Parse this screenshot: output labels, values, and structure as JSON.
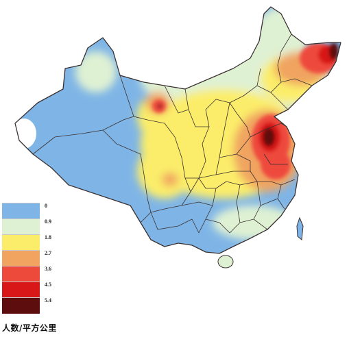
{
  "map": {
    "colors": {
      "c0": "#7fb5e6",
      "c1": "#dff1d3",
      "c2": "#fbed6a",
      "c3": "#f0a460",
      "c4": "#ee4a3c",
      "c5": "#d81818",
      "c6": "#5e0d0f",
      "border": "#3a3030",
      "water": "#ffffff"
    }
  },
  "legend": {
    "items": [
      {
        "label": "0",
        "color": "#7fb5e6"
      },
      {
        "label": "0.9",
        "color": "#dff1d3"
      },
      {
        "label": "1.8",
        "color": "#fbed6a"
      },
      {
        "label": "2.7",
        "color": "#f0a460"
      },
      {
        "label": "3.6",
        "color": "#ee4a3c"
      },
      {
        "label": "4.5",
        "color": "#d81818"
      },
      {
        "label": "5.4",
        "color": "#5e0d0f"
      }
    ],
    "unit": "人数/平方公里"
  }
}
